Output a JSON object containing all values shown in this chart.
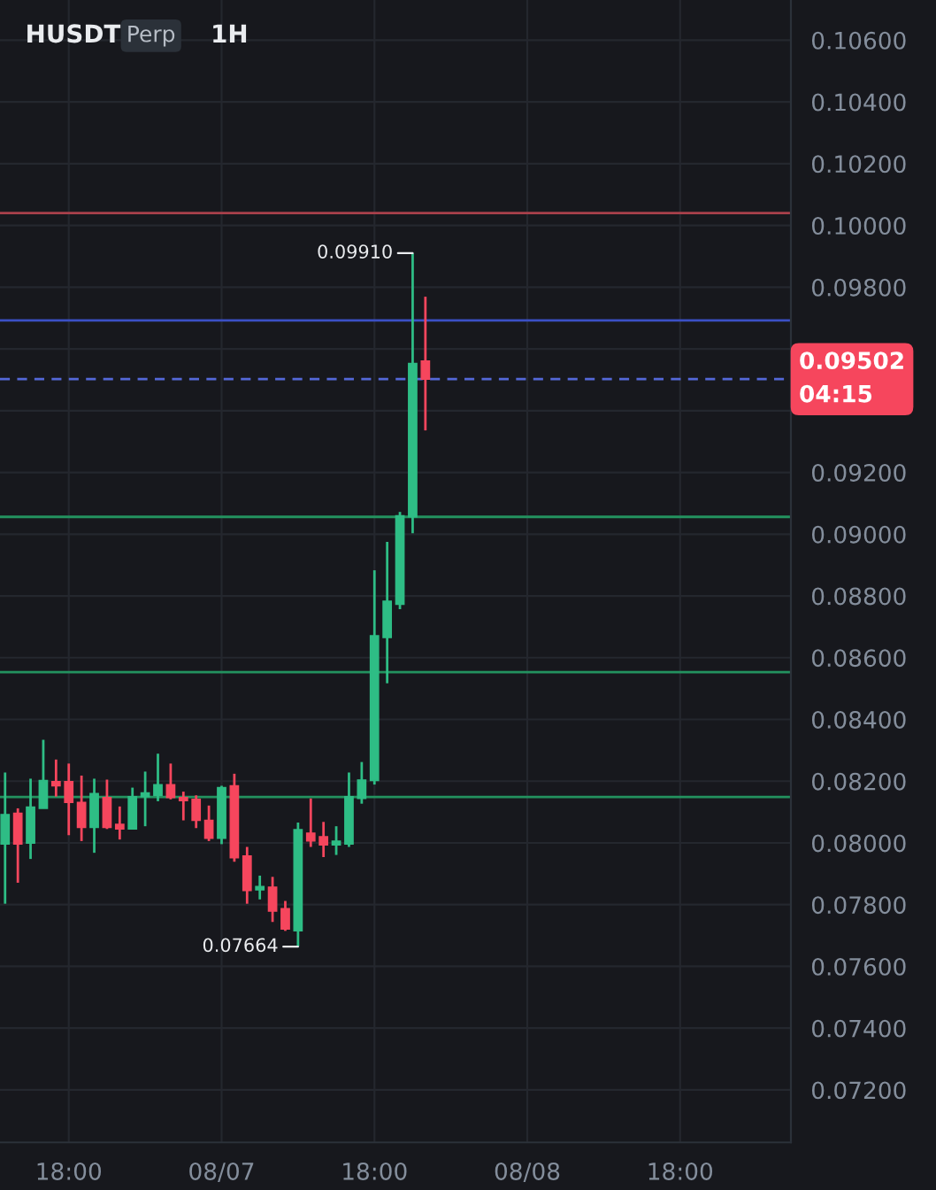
{
  "chart_data": {
    "type": "candlestick",
    "title": "HUSDT",
    "subtitle": "Perp",
    "annotations": [
      "1H",
      "0.09910",
      "0.07664"
    ],
    "categories": [
      null,
      null,
      null,
      null,
      null,
      "18:00",
      null,
      null,
      null,
      null,
      null,
      null,
      null,
      null,
      null,
      null,
      null,
      "08/07",
      null,
      null,
      null,
      null,
      null,
      null,
      null,
      null,
      null,
      null,
      null,
      "18:00",
      null,
      null,
      null,
      null,
      null,
      null,
      null,
      null,
      null,
      null,
      null,
      "08/08",
      null,
      null,
      null,
      null,
      null,
      null,
      null,
      null,
      null,
      null,
      null,
      "18:00",
      null,
      null,
      null,
      null,
      null,
      null,
      null,
      null
    ],
    "ohlc": [
      [
        0.07996,
        0.08228,
        0.07803,
        0.08092
      ],
      [
        0.08096,
        0.08112,
        0.07871,
        0.07996
      ],
      [
        0.07999,
        0.08208,
        0.07948,
        0.08116
      ],
      [
        0.08112,
        0.08334,
        0.08112,
        0.08202
      ],
      [
        0.08199,
        0.0827,
        0.0815,
        0.08185
      ],
      [
        0.08199,
        0.08257,
        0.08025,
        0.08131
      ],
      [
        0.08131,
        0.08218,
        0.08006,
        0.0805
      ],
      [
        0.0805,
        0.08208,
        0.07968,
        0.0816
      ],
      [
        0.08147,
        0.08205,
        0.08045,
        0.0805
      ],
      [
        0.0806,
        0.08118,
        0.08011,
        0.08045
      ],
      [
        0.08045,
        0.08179,
        0.08045,
        0.0815
      ],
      [
        0.0815,
        0.08231,
        0.08054,
        0.08162
      ],
      [
        0.08154,
        0.08289,
        0.08135,
        0.08189
      ],
      [
        0.08189,
        0.08257,
        0.08141,
        0.08147
      ],
      [
        0.08147,
        0.08166,
        0.08073,
        0.08137
      ],
      [
        0.08141,
        0.08154,
        0.08048,
        0.08073
      ],
      [
        0.08073,
        0.08121,
        0.08006,
        0.08015
      ],
      [
        0.08015,
        0.08185,
        0.07996,
        0.08179
      ],
      [
        0.08185,
        0.08224,
        0.07939,
        0.07952
      ],
      [
        0.07958,
        0.07987,
        0.07803,
        0.07846
      ],
      [
        0.07848,
        0.07894,
        0.07817,
        0.07859
      ],
      [
        0.07857,
        0.0789,
        0.07744,
        0.07779
      ],
      [
        0.07787,
        0.07812,
        0.07715,
        0.07721
      ],
      [
        0.07715,
        0.08066,
        0.07664,
        0.08043
      ],
      [
        0.08032,
        0.08144,
        0.07987,
        0.08006
      ],
      [
        0.0802,
        0.08068,
        0.07954,
        0.07993
      ],
      [
        0.07993,
        0.08054,
        0.07961,
        0.08006
      ],
      [
        0.07996,
        0.08228,
        0.07987,
        0.0815
      ],
      [
        0.08144,
        0.08262,
        0.08127,
        0.08204
      ],
      [
        0.08202,
        0.08883,
        0.08189,
        0.08671
      ],
      [
        0.08665,
        0.08975,
        0.08517,
        0.08783
      ],
      [
        0.08773,
        0.09072,
        0.08757,
        0.0906
      ],
      [
        0.09056,
        0.0991,
        0.09003,
        0.09553
      ],
      [
        0.09561,
        0.09769,
        0.09336,
        0.09502
      ],
      null,
      null,
      null,
      null,
      null,
      null,
      null,
      null,
      null,
      null,
      null,
      null,
      null,
      null,
      null,
      null,
      null,
      null,
      null,
      null,
      null,
      null,
      null,
      null,
      null,
      null,
      null,
      null
    ],
    "colors": [
      "#2ebd85",
      "#f6465d",
      "#2ebd85",
      "#2ebd85",
      "#f6465d",
      "#f6465d",
      "#f6465d",
      "#2ebd85",
      "#f6465d",
      "#f6465d",
      "#2ebd85",
      "#2ebd85",
      "#2ebd85",
      "#f6465d",
      "#f6465d",
      "#f6465d",
      "#f6465d",
      "#2ebd85",
      "#f6465d",
      "#f6465d",
      "#2ebd85",
      "#f6465d",
      "#f6465d",
      "#2ebd85",
      "#f6465d",
      "#f6465d",
      "#2ebd85",
      "#2ebd85",
      "#2ebd85",
      "#2ebd85",
      "#2ebd85",
      "#2ebd85",
      "#2ebd85",
      "#f6465d",
      null,
      null,
      null,
      null,
      null,
      null,
      null,
      null,
      null,
      null,
      null,
      null,
      null,
      null,
      null,
      null,
      null,
      null,
      null,
      null,
      null,
      null,
      null,
      null,
      null,
      null,
      null,
      null
    ],
    "ylim": [
      0.0703,
      0.1073
    ],
    "yticks": [
      {
        "value": 0.072,
        "label": "0.07200"
      },
      {
        "value": 0.074,
        "label": "0.07400"
      },
      {
        "value": 0.076,
        "label": "0.07600"
      },
      {
        "value": 0.078,
        "label": "0.07800"
      },
      {
        "value": 0.08,
        "label": "0.08000"
      },
      {
        "value": 0.082,
        "label": "0.08200"
      },
      {
        "value": 0.084,
        "label": "0.08400"
      },
      {
        "value": 0.086,
        "label": "0.08600"
      },
      {
        "value": 0.088,
        "label": "0.08800"
      },
      {
        "value": 0.09,
        "label": "0.09000"
      },
      {
        "value": 0.092,
        "label": "0.09200"
      },
      {
        "value": 0.094,
        "label": null
      },
      {
        "value": 0.096,
        "label": null
      },
      {
        "value": 0.098,
        "label": "0.09800"
      },
      {
        "value": 0.1,
        "label": "0.10000"
      },
      {
        "value": 0.102,
        "label": "0.10200"
      },
      {
        "value": 0.104,
        "label": "0.10400"
      },
      {
        "value": 0.106,
        "label": "0.10600"
      }
    ],
    "ref_lines": [
      {
        "axis": "y",
        "value": 0.1004,
        "color": "#a8404b"
      },
      {
        "axis": "y",
        "value": 0.09692,
        "color": "#3b4fc4"
      },
      {
        "axis": "y",
        "value": 0.09502,
        "label": "0.09502\n04:15",
        "color": "#5468d8",
        "line_style": "dashed"
      },
      {
        "axis": "y",
        "value": 0.09056,
        "color": "#23925f"
      },
      {
        "axis": "y",
        "value": 0.08553,
        "color": "#23925f"
      },
      {
        "axis": "y",
        "value": 0.08149,
        "color": "#23925f"
      }
    ],
    "grid": true
  }
}
